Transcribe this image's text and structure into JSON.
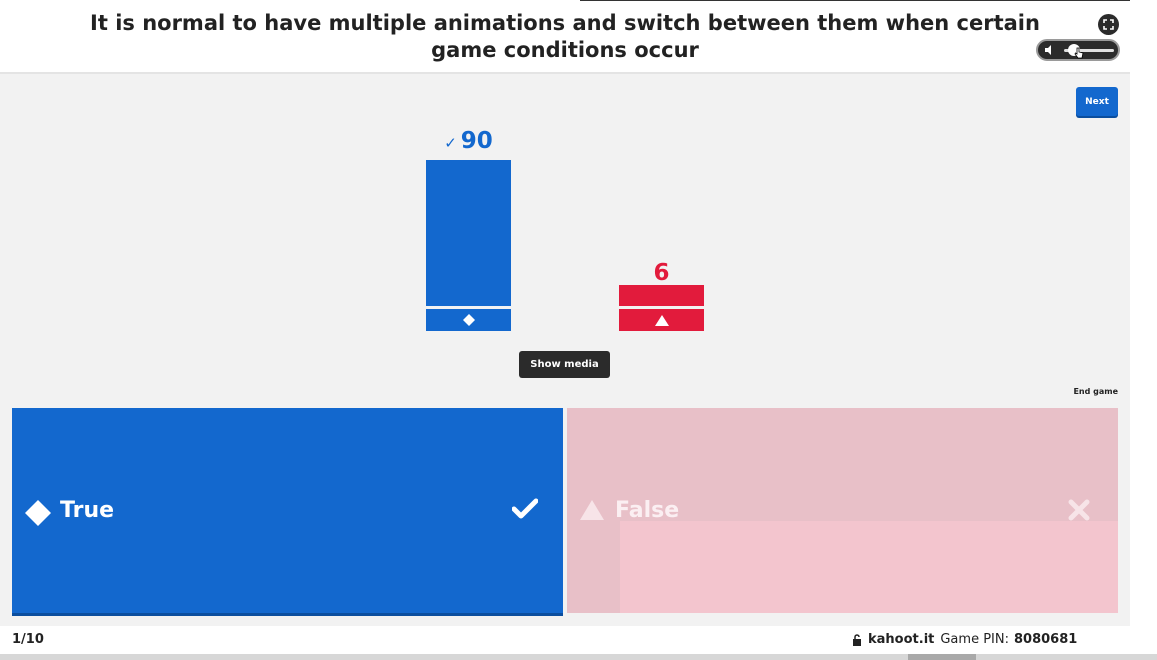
{
  "question": {
    "text": "It is normal to have multiple animations and switch between them when certain game conditions occur"
  },
  "controls": {
    "next_label": "Next",
    "show_media_label": "Show media",
    "end_game_label": "End game",
    "volume_level": 0.2
  },
  "results": [
    {
      "count": "90",
      "shape": "diamond-icon",
      "correct": true,
      "color": "#1368ce"
    },
    {
      "count": "6",
      "shape": "triangle-icon",
      "correct": false,
      "color": "#e21b3c"
    }
  ],
  "answers": [
    {
      "label": "True",
      "shape": "diamond-icon",
      "mark": "check-icon",
      "color": "#1368ce"
    },
    {
      "label": "False",
      "shape": "triangle-icon",
      "mark": "close-icon",
      "color": "#e8c0c8"
    }
  ],
  "footer": {
    "progress": "1/10",
    "site": "kahoot.it",
    "pin_label": "Game PIN:",
    "pin_value": "8080681"
  }
}
